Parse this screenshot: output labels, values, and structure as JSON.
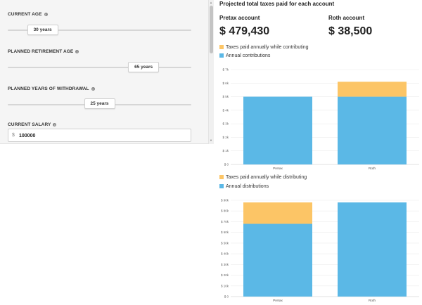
{
  "colors": {
    "contribution_blue": "#5bb8e6",
    "tax_orange": "#fcc566"
  },
  "inputs": {
    "current_age": {
      "label": "CURRENT AGE",
      "value": "30 years",
      "fraction": 0.19
    },
    "retirement_age": {
      "label": "PLANNED RETIREMENT AGE",
      "value": "65 years",
      "fraction": 0.74
    },
    "withdrawal_years": {
      "label": "PLANNED YEARS OF WITHDRAWAL",
      "value": "25 years",
      "fraction": 0.5
    },
    "current_salary": {
      "label": "CURRENT SALARY",
      "prefix": "$",
      "value": "100000"
    }
  },
  "results": {
    "title": "Projected total taxes paid for each account",
    "pretax": {
      "label": "Pretax account",
      "value": "$ 479,430"
    },
    "roth": {
      "label": "Roth account",
      "value": "$ 38,500"
    }
  },
  "legend1": {
    "taxes": "Taxes paid annually while contributing",
    "base": "Annual contributions"
  },
  "legend2": {
    "taxes": "Taxes paid annually while distributing",
    "base": "Annual distributions"
  },
  "chart_data": [
    {
      "type": "bar",
      "stacked": true,
      "categories": [
        "Pretax",
        "Roth"
      ],
      "series": [
        {
          "name": "Annual contributions",
          "values": [
            5000,
            5000
          ]
        },
        {
          "name": "Taxes paid annually while contributing",
          "values": [
            0,
            1100
          ]
        }
      ],
      "ylim": [
        0,
        7000
      ],
      "yticks": [
        "$ 0",
        "$ 1k",
        "$ 2k",
        "$ 3k",
        "$ 4k",
        "$ 5k",
        "$ 6k",
        "$ 7k"
      ],
      "legend": "top-left"
    },
    {
      "type": "bar",
      "stacked": true,
      "categories": [
        "Pretax",
        "Roth"
      ],
      "series": [
        {
          "name": "Annual distributions",
          "values": [
            68000,
            88000
          ]
        },
        {
          "name": "Taxes paid annually while distributing",
          "values": [
            20000,
            0
          ]
        }
      ],
      "ylim": [
        0,
        90000
      ],
      "yticks": [
        "$ 0",
        "$ 10k",
        "$ 20k",
        "$ 30k",
        "$ 40k",
        "$ 50k",
        "$ 60k",
        "$ 70k",
        "$ 80k",
        "$ 90k"
      ],
      "legend": "top-left"
    }
  ]
}
